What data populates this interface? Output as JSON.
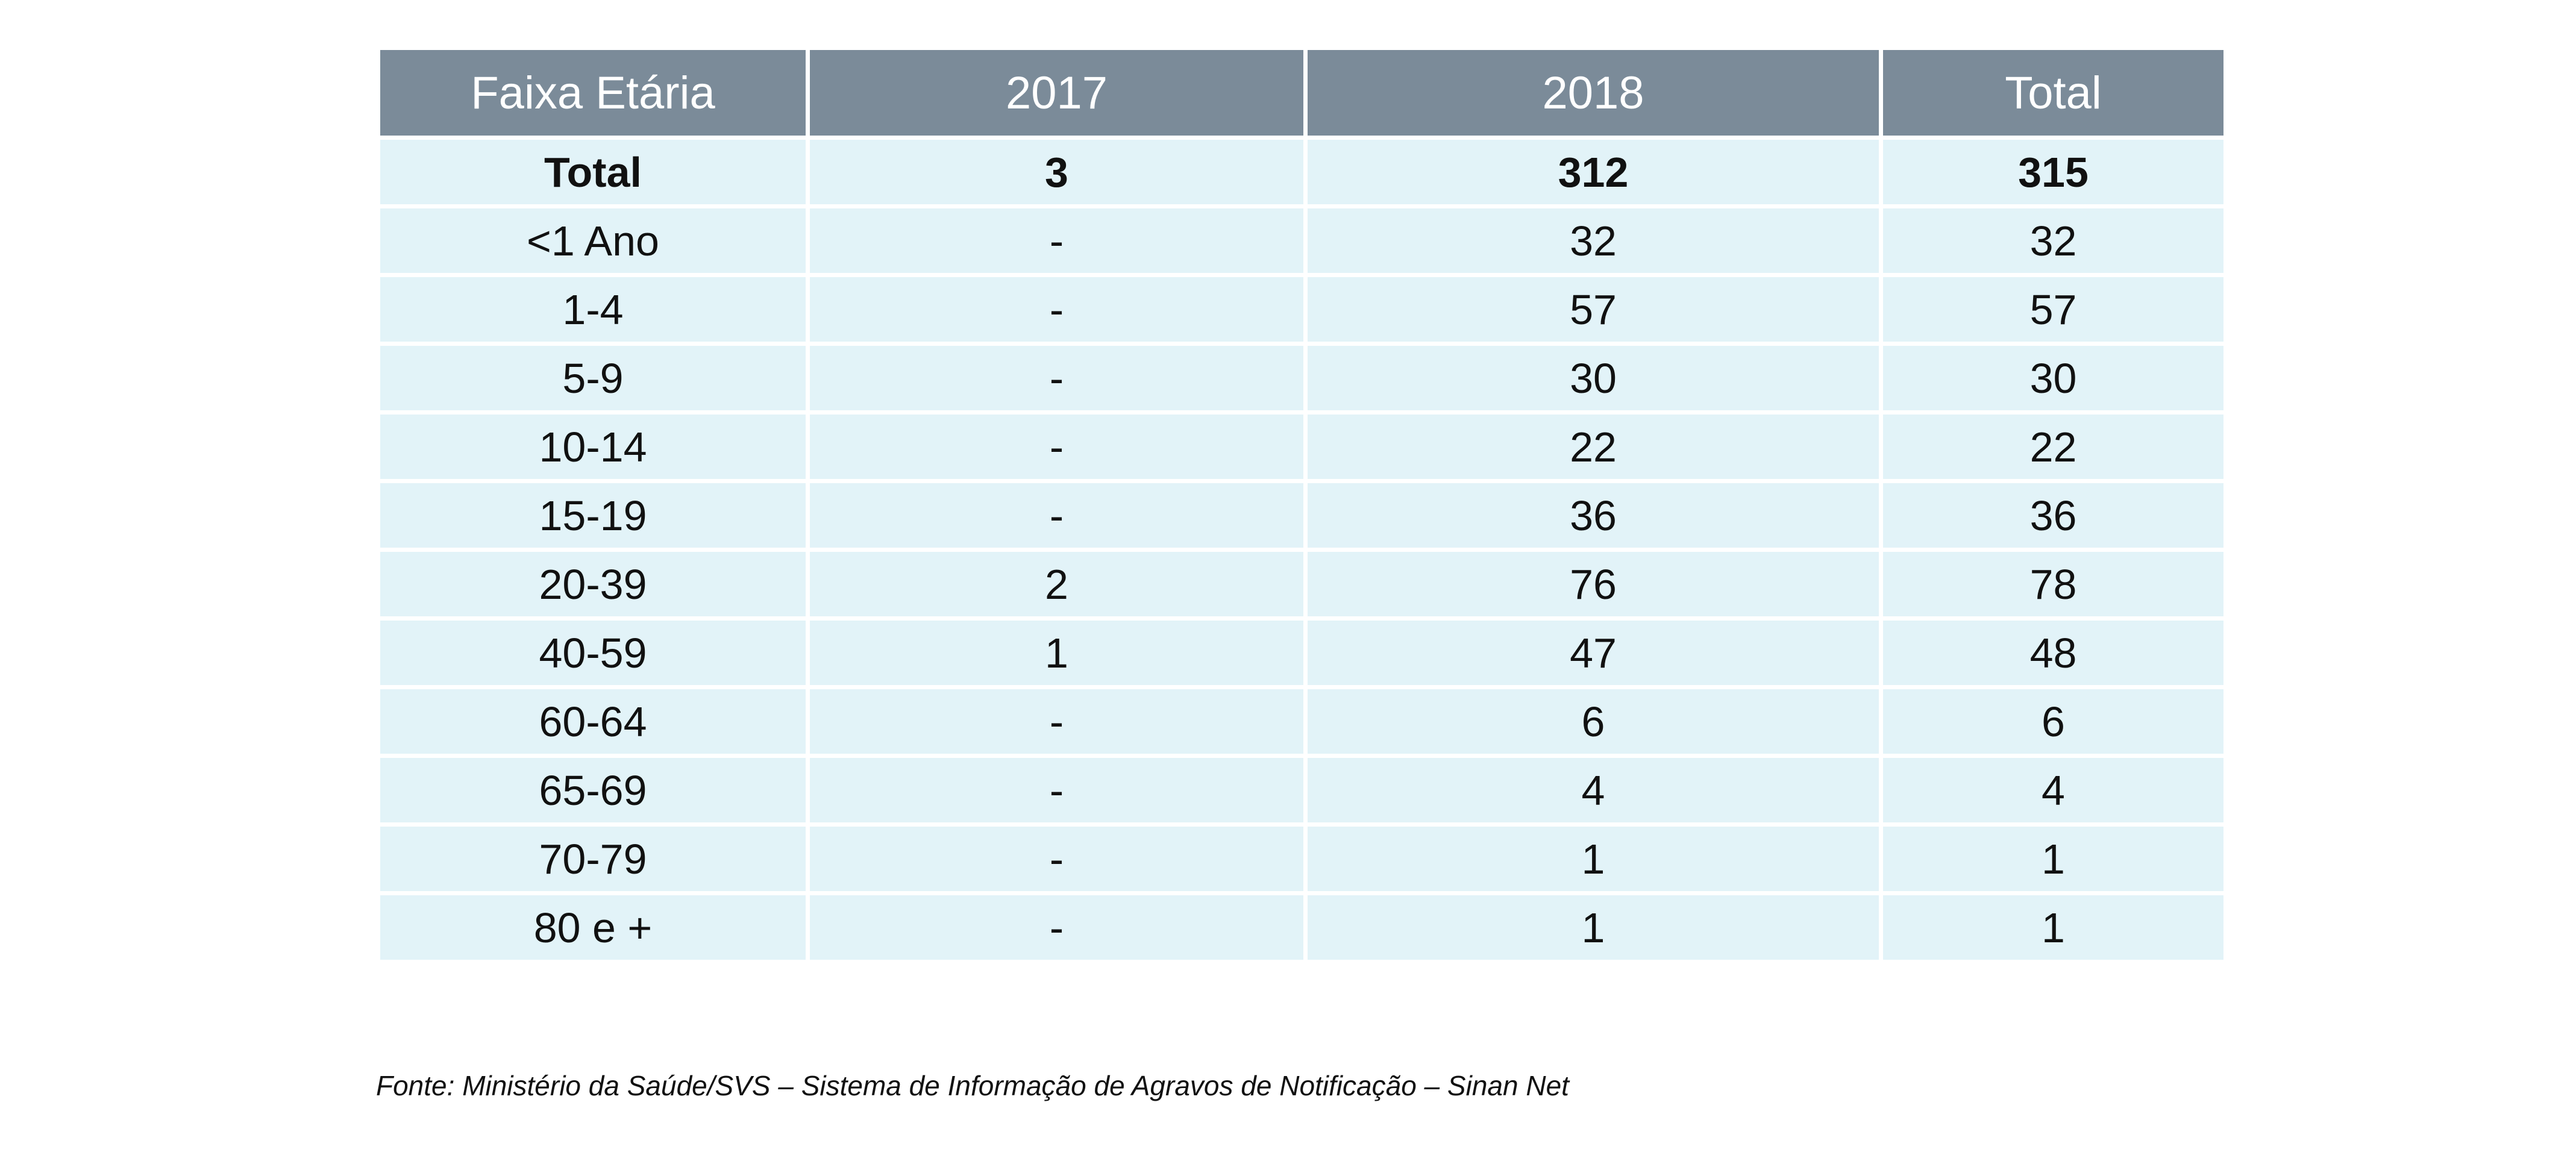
{
  "table": {
    "headers": [
      "Faixa Etária",
      "2017",
      "2018",
      "Total"
    ],
    "rows": [
      [
        "Total",
        "3",
        "312",
        "315"
      ],
      [
        "<1 Ano",
        "-",
        "32",
        "32"
      ],
      [
        "1-4",
        "-",
        "57",
        "57"
      ],
      [
        "5-9",
        "-",
        "30",
        "30"
      ],
      [
        "10-14",
        "-",
        "22",
        "22"
      ],
      [
        "15-19",
        "-",
        "36",
        "36"
      ],
      [
        "20-39",
        "2",
        "76",
        "78"
      ],
      [
        "40-59",
        "1",
        "47",
        "48"
      ],
      [
        "60-64",
        "-",
        "6",
        "6"
      ],
      [
        "65-69",
        "-",
        "4",
        "4"
      ],
      [
        "70-79",
        "-",
        "1",
        "1"
      ],
      [
        "80 e +",
        "-",
        "1",
        "1"
      ]
    ]
  },
  "source": "Fonte: Ministério da Saúde/SVS – Sistema de Informação de Agravos de Notificação – Sinan Net",
  "colors": {
    "header_bg": "#7b8b99",
    "header_text": "#ffffff",
    "cell_bg": "#e2f3f8",
    "cell_text": "#111111"
  }
}
